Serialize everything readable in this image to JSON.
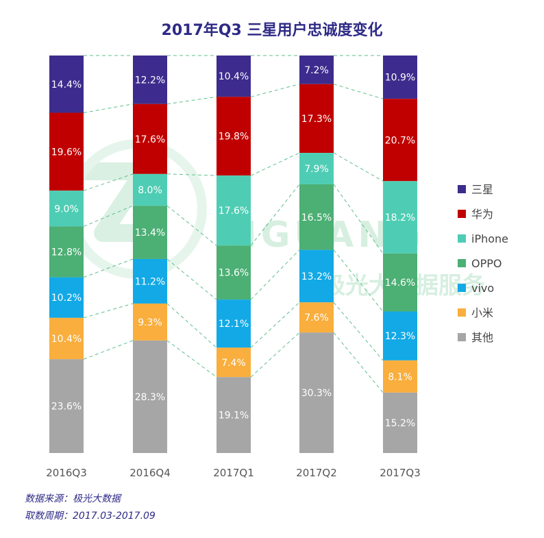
{
  "chart_data": {
    "type": "bar",
    "stacked": true,
    "title": "2017年Q3 三星用户忠诚度变化",
    "categories": [
      "2016Q3",
      "2016Q4",
      "2017Q1",
      "2017Q2",
      "2017Q3"
    ],
    "series": [
      {
        "name": "三星",
        "color": "#3d2c8d",
        "values": [
          14.4,
          12.2,
          10.4,
          7.2,
          10.9
        ]
      },
      {
        "name": "华为",
        "color": "#c00000",
        "values": [
          19.6,
          17.6,
          19.8,
          17.3,
          20.7
        ]
      },
      {
        "name": "iPhone",
        "color": "#4ecdb4",
        "values": [
          9.0,
          8.0,
          17.6,
          7.9,
          18.2
        ]
      },
      {
        "name": "OPPO",
        "color": "#4caf74",
        "values": [
          12.8,
          13.4,
          13.6,
          16.5,
          14.6
        ]
      },
      {
        "name": "vivo",
        "color": "#12a9e6",
        "values": [
          10.2,
          11.2,
          12.1,
          13.2,
          12.3
        ]
      },
      {
        "name": "小米",
        "color": "#f9ae3d",
        "values": [
          10.4,
          9.3,
          7.4,
          7.6,
          8.1
        ]
      },
      {
        "name": "其他",
        "color": "#a6a6a6",
        "values": [
          23.6,
          28.3,
          19.1,
          30.3,
          15.2
        ]
      }
    ],
    "value_format": "{v}%",
    "ylim": [
      0,
      100
    ],
    "legend_position": "right",
    "connector_lines": "dashed",
    "connector_color": "#5fbf8a"
  },
  "watermark": {
    "text": "JIGUANG",
    "subtext": "极光大数据服务"
  },
  "source": {
    "line1": "数据来源：极光大数据",
    "line2": "取数周期：2017.03-2017.09"
  }
}
